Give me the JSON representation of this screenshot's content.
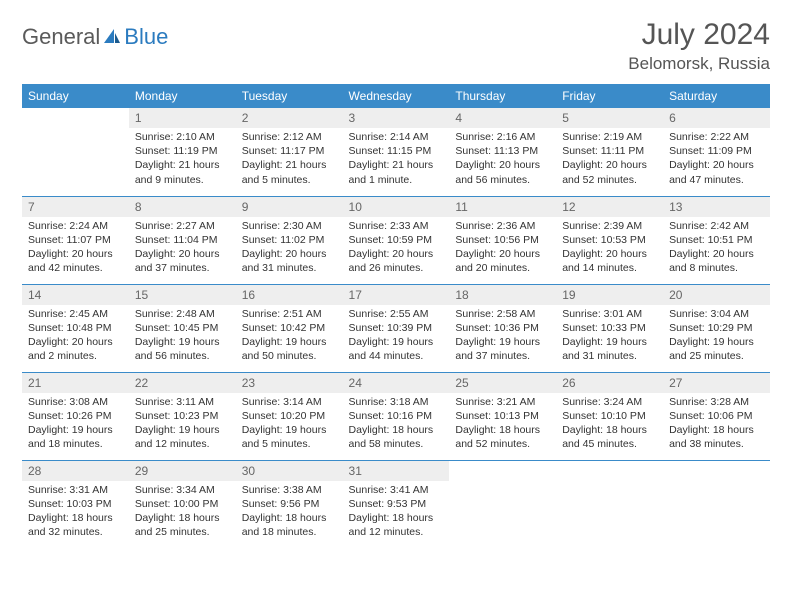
{
  "brand": {
    "part1": "General",
    "part2": "Blue"
  },
  "title": "July 2024",
  "location": "Belomorsk, Russia",
  "colors": {
    "header_bg": "#3a8bc9",
    "header_fg": "#ffffff",
    "daynum_bg": "#eeeeee",
    "daynum_fg": "#666666",
    "border": "#3a8bc9",
    "text": "#333333",
    "brand_gray": "#5a5a5a",
    "brand_blue": "#2b7bbf",
    "page_bg": "#ffffff"
  },
  "typography": {
    "title_fontsize": 30,
    "location_fontsize": 17,
    "header_fontsize": 12,
    "daynum_fontsize": 12,
    "body_fontsize": 10.5,
    "logo_fontsize": 22
  },
  "day_headers": [
    "Sunday",
    "Monday",
    "Tuesday",
    "Wednesday",
    "Thursday",
    "Friday",
    "Saturday"
  ],
  "weeks": [
    [
      {
        "n": "",
        "sr": "",
        "ss": "",
        "dl": "",
        "empty": true
      },
      {
        "n": "1",
        "sr": "Sunrise: 2:10 AM",
        "ss": "Sunset: 11:19 PM",
        "dl": "Daylight: 21 hours and 9 minutes."
      },
      {
        "n": "2",
        "sr": "Sunrise: 2:12 AM",
        "ss": "Sunset: 11:17 PM",
        "dl": "Daylight: 21 hours and 5 minutes."
      },
      {
        "n": "3",
        "sr": "Sunrise: 2:14 AM",
        "ss": "Sunset: 11:15 PM",
        "dl": "Daylight: 21 hours and 1 minute."
      },
      {
        "n": "4",
        "sr": "Sunrise: 2:16 AM",
        "ss": "Sunset: 11:13 PM",
        "dl": "Daylight: 20 hours and 56 minutes."
      },
      {
        "n": "5",
        "sr": "Sunrise: 2:19 AM",
        "ss": "Sunset: 11:11 PM",
        "dl": "Daylight: 20 hours and 52 minutes."
      },
      {
        "n": "6",
        "sr": "Sunrise: 2:22 AM",
        "ss": "Sunset: 11:09 PM",
        "dl": "Daylight: 20 hours and 47 minutes."
      }
    ],
    [
      {
        "n": "7",
        "sr": "Sunrise: 2:24 AM",
        "ss": "Sunset: 11:07 PM",
        "dl": "Daylight: 20 hours and 42 minutes."
      },
      {
        "n": "8",
        "sr": "Sunrise: 2:27 AM",
        "ss": "Sunset: 11:04 PM",
        "dl": "Daylight: 20 hours and 37 minutes."
      },
      {
        "n": "9",
        "sr": "Sunrise: 2:30 AM",
        "ss": "Sunset: 11:02 PM",
        "dl": "Daylight: 20 hours and 31 minutes."
      },
      {
        "n": "10",
        "sr": "Sunrise: 2:33 AM",
        "ss": "Sunset: 10:59 PM",
        "dl": "Daylight: 20 hours and 26 minutes."
      },
      {
        "n": "11",
        "sr": "Sunrise: 2:36 AM",
        "ss": "Sunset: 10:56 PM",
        "dl": "Daylight: 20 hours and 20 minutes."
      },
      {
        "n": "12",
        "sr": "Sunrise: 2:39 AM",
        "ss": "Sunset: 10:53 PM",
        "dl": "Daylight: 20 hours and 14 minutes."
      },
      {
        "n": "13",
        "sr": "Sunrise: 2:42 AM",
        "ss": "Sunset: 10:51 PM",
        "dl": "Daylight: 20 hours and 8 minutes."
      }
    ],
    [
      {
        "n": "14",
        "sr": "Sunrise: 2:45 AM",
        "ss": "Sunset: 10:48 PM",
        "dl": "Daylight: 20 hours and 2 minutes."
      },
      {
        "n": "15",
        "sr": "Sunrise: 2:48 AM",
        "ss": "Sunset: 10:45 PM",
        "dl": "Daylight: 19 hours and 56 minutes."
      },
      {
        "n": "16",
        "sr": "Sunrise: 2:51 AM",
        "ss": "Sunset: 10:42 PM",
        "dl": "Daylight: 19 hours and 50 minutes."
      },
      {
        "n": "17",
        "sr": "Sunrise: 2:55 AM",
        "ss": "Sunset: 10:39 PM",
        "dl": "Daylight: 19 hours and 44 minutes."
      },
      {
        "n": "18",
        "sr": "Sunrise: 2:58 AM",
        "ss": "Sunset: 10:36 PM",
        "dl": "Daylight: 19 hours and 37 minutes."
      },
      {
        "n": "19",
        "sr": "Sunrise: 3:01 AM",
        "ss": "Sunset: 10:33 PM",
        "dl": "Daylight: 19 hours and 31 minutes."
      },
      {
        "n": "20",
        "sr": "Sunrise: 3:04 AM",
        "ss": "Sunset: 10:29 PM",
        "dl": "Daylight: 19 hours and 25 minutes."
      }
    ],
    [
      {
        "n": "21",
        "sr": "Sunrise: 3:08 AM",
        "ss": "Sunset: 10:26 PM",
        "dl": "Daylight: 19 hours and 18 minutes."
      },
      {
        "n": "22",
        "sr": "Sunrise: 3:11 AM",
        "ss": "Sunset: 10:23 PM",
        "dl": "Daylight: 19 hours and 12 minutes."
      },
      {
        "n": "23",
        "sr": "Sunrise: 3:14 AM",
        "ss": "Sunset: 10:20 PM",
        "dl": "Daylight: 19 hours and 5 minutes."
      },
      {
        "n": "24",
        "sr": "Sunrise: 3:18 AM",
        "ss": "Sunset: 10:16 PM",
        "dl": "Daylight: 18 hours and 58 minutes."
      },
      {
        "n": "25",
        "sr": "Sunrise: 3:21 AM",
        "ss": "Sunset: 10:13 PM",
        "dl": "Daylight: 18 hours and 52 minutes."
      },
      {
        "n": "26",
        "sr": "Sunrise: 3:24 AM",
        "ss": "Sunset: 10:10 PM",
        "dl": "Daylight: 18 hours and 45 minutes."
      },
      {
        "n": "27",
        "sr": "Sunrise: 3:28 AM",
        "ss": "Sunset: 10:06 PM",
        "dl": "Daylight: 18 hours and 38 minutes."
      }
    ],
    [
      {
        "n": "28",
        "sr": "Sunrise: 3:31 AM",
        "ss": "Sunset: 10:03 PM",
        "dl": "Daylight: 18 hours and 32 minutes."
      },
      {
        "n": "29",
        "sr": "Sunrise: 3:34 AM",
        "ss": "Sunset: 10:00 PM",
        "dl": "Daylight: 18 hours and 25 minutes."
      },
      {
        "n": "30",
        "sr": "Sunrise: 3:38 AM",
        "ss": "Sunset: 9:56 PM",
        "dl": "Daylight: 18 hours and 18 minutes."
      },
      {
        "n": "31",
        "sr": "Sunrise: 3:41 AM",
        "ss": "Sunset: 9:53 PM",
        "dl": "Daylight: 18 hours and 12 minutes."
      },
      {
        "n": "",
        "sr": "",
        "ss": "",
        "dl": "",
        "empty": true
      },
      {
        "n": "",
        "sr": "",
        "ss": "",
        "dl": "",
        "empty": true
      },
      {
        "n": "",
        "sr": "",
        "ss": "",
        "dl": "",
        "empty": true
      }
    ]
  ]
}
